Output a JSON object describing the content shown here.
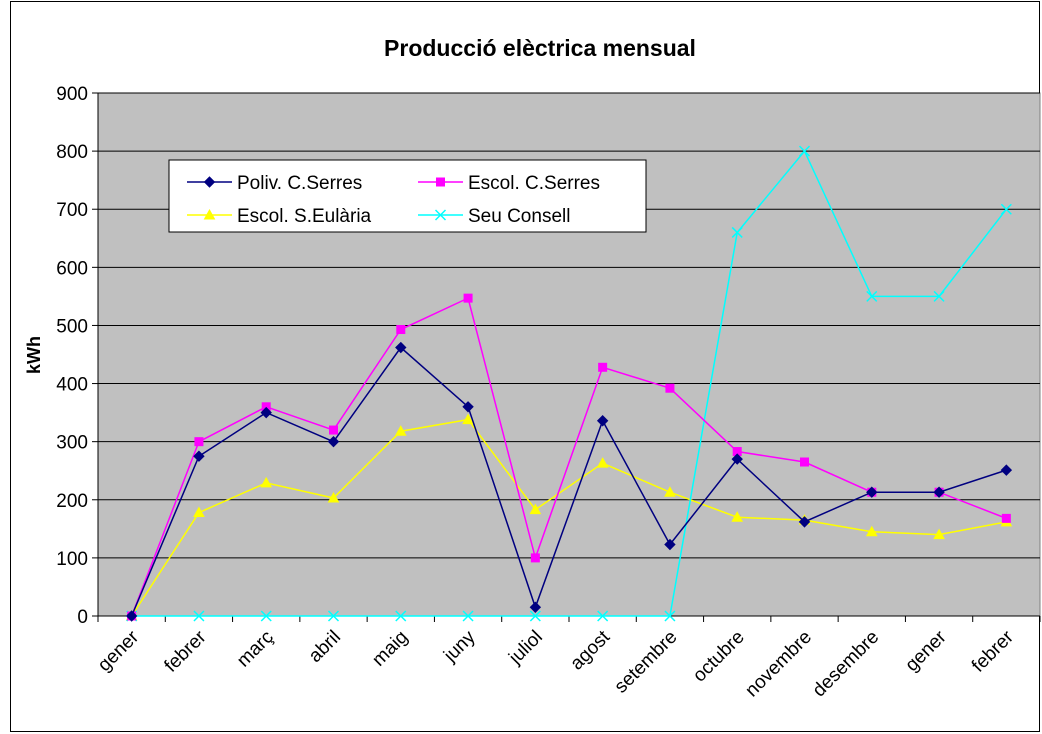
{
  "chart_data": {
    "type": "line",
    "title": "Producció elèctrica mensual",
    "xlabel": "",
    "ylabel": "kWh",
    "ylim": [
      0,
      900
    ],
    "yticks": [
      0,
      100,
      200,
      300,
      400,
      500,
      600,
      700,
      800,
      900
    ],
    "grid": true,
    "legend_position": "top-left",
    "categories": [
      "gener",
      "febrer",
      "març",
      "abril",
      "maig",
      "juny",
      "juliol",
      "agost",
      "setembre",
      "octubre",
      "novembre",
      "desembre",
      "gener",
      "febrer"
    ],
    "series": [
      {
        "name": "Poliv. C.Serres",
        "color": "#000080",
        "marker": "diamond",
        "values": [
          0,
          275,
          350,
          300,
          462,
          360,
          15,
          336,
          123,
          270,
          162,
          213,
          213,
          251
        ]
      },
      {
        "name": "Escol. C.Serres",
        "color": "#ff00ff",
        "marker": "square",
        "values": [
          0,
          300,
          360,
          320,
          493,
          547,
          100,
          428,
          392,
          283,
          265,
          213,
          213,
          168
        ]
      },
      {
        "name": "Escol. S.Eulària",
        "color": "#ffff00",
        "marker": "triangle",
        "values": [
          0,
          178,
          229,
          203,
          318,
          338,
          183,
          263,
          213,
          170,
          165,
          145,
          140,
          162
        ]
      },
      {
        "name": "Seu Consell",
        "color": "#00ffff",
        "marker": "x",
        "values": [
          0,
          0,
          0,
          0,
          0,
          0,
          0,
          0,
          0,
          660,
          800,
          550,
          550,
          700
        ]
      }
    ],
    "plot_background": "#c0c0c0"
  }
}
